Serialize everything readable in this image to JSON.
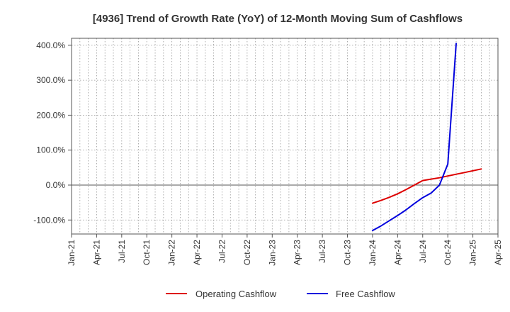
{
  "chart_data": {
    "type": "line",
    "title": "[4936]  Trend of Growth Rate (YoY) of 12-Month Moving Sum of Cashflows",
    "xlabel": "",
    "ylabel": "",
    "x_ticks": [
      "Jan-21",
      "Apr-21",
      "Jul-21",
      "Oct-21",
      "Jan-22",
      "Apr-22",
      "Jul-22",
      "Oct-22",
      "Jan-23",
      "Apr-23",
      "Jul-23",
      "Oct-23",
      "Jan-24",
      "Apr-24",
      "Jul-24",
      "Oct-24",
      "Jan-25",
      "Apr-25"
    ],
    "x_range": [
      "2021-01",
      "2025-04"
    ],
    "y_ticks": [
      -100,
      0,
      100,
      200,
      300,
      400
    ],
    "y_tick_labels": [
      "-100.0%",
      "0.0%",
      "100.0%",
      "200.0%",
      "300.0%",
      "400.0%"
    ],
    "ylim": [
      -140,
      420
    ],
    "grid": true,
    "legend_position": "bottom-center",
    "series": [
      {
        "name": "Operating Cashflow",
        "color": "#dd0000",
        "points": [
          [
            "2024-01",
            -52
          ],
          [
            "2024-02",
            -44
          ],
          [
            "2024-03",
            -35
          ],
          [
            "2024-04",
            -25
          ],
          [
            "2024-05",
            -13
          ],
          [
            "2024-06",
            0
          ],
          [
            "2024-07",
            13
          ],
          [
            "2024-08",
            17
          ],
          [
            "2024-09",
            21
          ],
          [
            "2024-10",
            26
          ],
          [
            "2024-11",
            31
          ],
          [
            "2024-12",
            36
          ],
          [
            "2025-01",
            41
          ],
          [
            "2025-02",
            46
          ]
        ]
      },
      {
        "name": "Free Cashflow",
        "color": "#0000dd",
        "points": [
          [
            "2024-01",
            -130
          ],
          [
            "2024-02",
            -117
          ],
          [
            "2024-03",
            -102
          ],
          [
            "2024-04",
            -87
          ],
          [
            "2024-05",
            -71
          ],
          [
            "2024-06",
            -53
          ],
          [
            "2024-07",
            -36
          ],
          [
            "2024-08",
            -23
          ],
          [
            "2024-09",
            0
          ],
          [
            "2024-10",
            60
          ],
          [
            "2024-11",
            405
          ]
        ]
      }
    ]
  }
}
